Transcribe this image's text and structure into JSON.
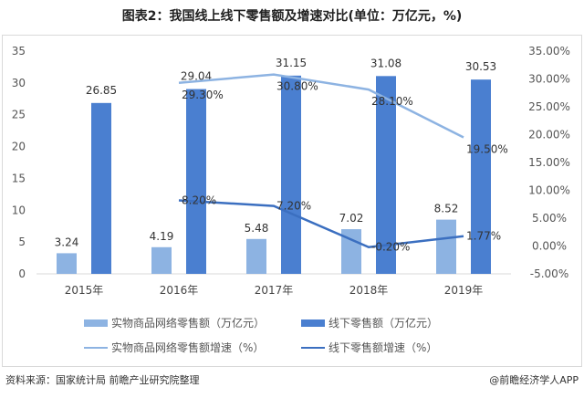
{
  "title": "图表2：我国线上线下零售额及增速对比(单位：万亿元，%)",
  "source": "资料来源：国家统计局 前瞻产业研究院整理",
  "credit": "@前瞻经济学人APP",
  "chart_data": {
    "type": "bar",
    "categories": [
      "2015年",
      "2016年",
      "2017年",
      "2018年",
      "2019年"
    ],
    "left_axis": {
      "ylim": [
        0,
        35
      ],
      "ticks": [
        0,
        5,
        10,
        15,
        20,
        25,
        30,
        35
      ]
    },
    "right_axis": {
      "ylim": [
        -5,
        35
      ],
      "ticks": [
        "-5.00%",
        "0.00%",
        "5.00%",
        "10.00%",
        "15.00%",
        "20.00%",
        "25.00%",
        "30.00%",
        "35.00%"
      ]
    },
    "series": [
      {
        "name": "实物商品网络零售额（万亿元）",
        "type": "bar",
        "axis": "left",
        "color": "#8db3e2",
        "values": [
          3.24,
          4.19,
          5.48,
          7.02,
          8.52
        ],
        "labels": [
          "3.24",
          "4.19",
          "5.48",
          "7.02",
          "8.52"
        ]
      },
      {
        "name": "线下零售额（万亿元）",
        "type": "bar",
        "axis": "left",
        "color": "#4a7fd0",
        "values": [
          26.85,
          29.04,
          31.15,
          31.08,
          30.53
        ],
        "labels": [
          "26.85",
          "29.04",
          "31.15",
          "31.08",
          "30.53"
        ]
      },
      {
        "name": "实物商品网络零售额增速（%）",
        "type": "line",
        "axis": "right",
        "color": "#8db3e2",
        "values": [
          null,
          29.3,
          30.8,
          28.1,
          19.5
        ],
        "labels": [
          "",
          "29.30%",
          "30.80%",
          "28.10%",
          "19.50%"
        ]
      },
      {
        "name": "线下零售额增速（%）",
        "type": "line",
        "axis": "right",
        "color": "#3b6fc0",
        "values": [
          null,
          8.2,
          7.2,
          -0.2,
          1.77
        ],
        "labels": [
          "",
          "8.20%",
          "7.20%",
          "-0.20%",
          "1.77%"
        ]
      }
    ]
  }
}
